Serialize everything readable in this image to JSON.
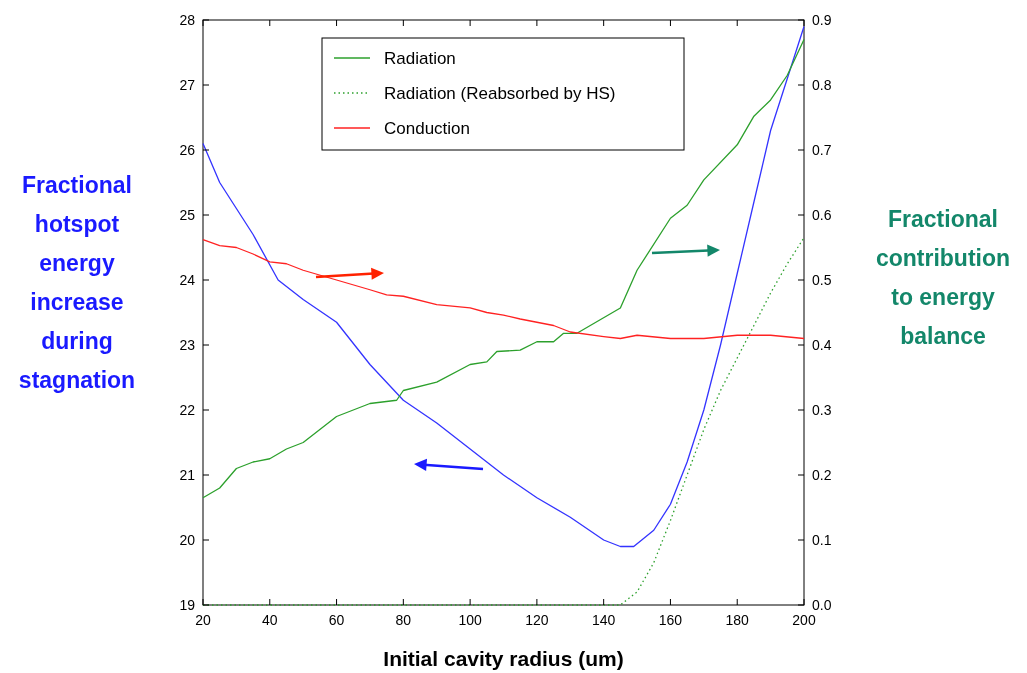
{
  "chart_data": {
    "type": "line",
    "xlabel": "Initial cavity radius (um)",
    "ylabel": "Fractional hotspot energy increase during stagnation",
    "y2label": "Fractional contribution to energy balance",
    "xlim": [
      20,
      200
    ],
    "xticks": [
      20,
      40,
      60,
      80,
      100,
      120,
      140,
      160,
      180,
      200
    ],
    "ylim": [
      19,
      28
    ],
    "yticks": [
      19,
      20,
      21,
      22,
      23,
      24,
      25,
      26,
      27,
      28
    ],
    "y2lim": [
      0,
      0.9
    ],
    "y2ticks": [
      {
        "value": 0,
        "label": "0.0"
      },
      0.1,
      0.2,
      0.3,
      0.4,
      0.5,
      0.6,
      0.7,
      0.8,
      0.9
    ],
    "legend": "top",
    "grid": false,
    "series": [
      {
        "color": "#3333ff",
        "x": [
          20,
          25,
          30,
          35,
          42.5,
          50,
          60,
          70,
          80,
          90,
          100,
          110,
          120,
          130,
          140,
          145,
          149,
          155,
          160,
          165,
          170,
          175,
          180,
          185,
          190,
          195,
          200
        ],
        "values": [
          26.1,
          25.5,
          25.1,
          24.7,
          24.0,
          23.7,
          23.35,
          22.7,
          22.15,
          21.8,
          21.4,
          21.0,
          20.65,
          20.35,
          20.0,
          19.9,
          19.9,
          20.15,
          20.55,
          21.2,
          22.0,
          23.0,
          24.1,
          25.2,
          26.3,
          27.1,
          27.9
        ]
      },
      {
        "name": "Radiation",
        "color": "#2ca02c",
        "axis": "y2",
        "line_style": "solid",
        "x": [
          20,
          25,
          30,
          35,
          40,
          45,
          50,
          60,
          70,
          78,
          80,
          90,
          100,
          105,
          108,
          115,
          120,
          125,
          128,
          132,
          145,
          150,
          160,
          165,
          170,
          180,
          185,
          190,
          195,
          200
        ],
        "values": [
          0.165,
          0.18,
          0.21,
          0.22,
          0.225,
          0.24,
          0.25,
          0.29,
          0.31,
          0.315,
          0.33,
          0.343,
          0.37,
          0.374,
          0.39,
          0.392,
          0.405,
          0.405,
          0.418,
          0.418,
          0.457,
          0.515,
          0.595,
          0.615,
          0.654,
          0.708,
          0.752,
          0.777,
          0.815,
          0.87
        ]
      },
      {
        "name": "Radiation (Reabsorbed by HS)",
        "color": "#2ca02c",
        "axis": "y2",
        "line_style": "dotted",
        "x": [
          20,
          145,
          150,
          155,
          160,
          165,
          170,
          175,
          180,
          185,
          190,
          195,
          200
        ],
        "values": [
          0,
          0,
          0.02,
          0.065,
          0.13,
          0.2,
          0.27,
          0.33,
          0.38,
          0.43,
          0.48,
          0.525,
          0.565
        ]
      },
      {
        "name": "Conduction",
        "color": "#ff2222",
        "axis": "y2",
        "line_style": "solid",
        "x": [
          20,
          25,
          30,
          35,
          40,
          45,
          50,
          60,
          70,
          75,
          80,
          90,
          100,
          105,
          110,
          115,
          120,
          125,
          130,
          140,
          145,
          150,
          160,
          170,
          180,
          190,
          200
        ],
        "values": [
          0.562,
          0.553,
          0.55,
          0.54,
          0.528,
          0.525,
          0.515,
          0.5,
          0.485,
          0.477,
          0.475,
          0.462,
          0.457,
          0.45,
          0.446,
          0.44,
          0.435,
          0.43,
          0.42,
          0.413,
          0.41,
          0.415,
          0.41,
          0.41,
          0.415,
          0.415,
          0.41
        ]
      }
    ]
  }
}
